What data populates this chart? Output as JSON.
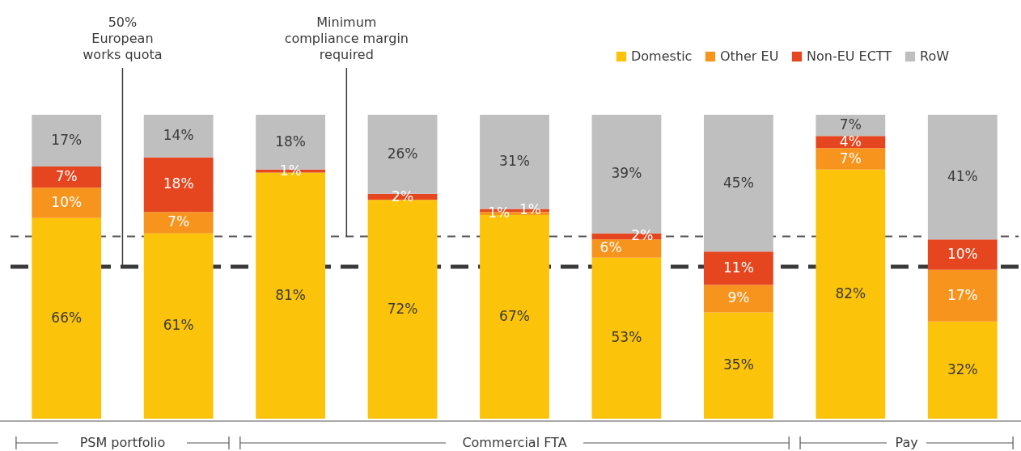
{
  "chart_data": {
    "type": "bar",
    "stacked": true,
    "categories": [
      null,
      null,
      null,
      null,
      null,
      null,
      null,
      null,
      null
    ],
    "series": [
      {
        "name": "Domestic",
        "color": "#fcc30b",
        "values": [
          66,
          61,
          81,
          72,
          67,
          53,
          35,
          82,
          32
        ],
        "value_labels": [
          "66%",
          "61%",
          "81%",
          "72%",
          "67%",
          "53%",
          "35%",
          "82%",
          "32%"
        ]
      },
      {
        "name": "Other EU",
        "color": "#f7941d",
        "values": [
          10,
          7,
          null,
          null,
          1,
          6,
          9,
          7,
          17
        ],
        "value_labels": [
          "10%",
          "7%",
          null,
          null,
          "1%",
          "6%",
          "9%",
          "7%",
          "17%"
        ]
      },
      {
        "name": "Non-EU ECTT",
        "color": "#e5461f",
        "values": [
          7,
          18,
          1,
          2,
          1,
          2,
          11,
          4,
          10
        ],
        "value_labels": [
          "7%",
          "18%",
          "1%",
          "2%",
          "1%",
          "2%",
          "11%",
          "4%",
          "10%"
        ]
      },
      {
        "name": "RoW",
        "color": "#bfbfbf",
        "values": [
          17,
          14,
          18,
          26,
          31,
          39,
          45,
          7,
          41
        ],
        "value_labels": [
          "17%",
          "14%",
          "18%",
          "26%",
          "31%",
          "39%",
          "45%",
          "7%",
          "41%"
        ]
      }
    ],
    "ref_lines": [
      {
        "axis": "y",
        "value": 50,
        "label": "50%\nEuropean\nworks quota",
        "color": "#3a3a3a",
        "line_style": "dashed"
      },
      {
        "axis": "y",
        "value": 60,
        "label": "Minimum\ncompliance margin\nrequired",
        "color": "#555555",
        "line_style": "dashed"
      }
    ],
    "annotations": [
      "PSM portfolio",
      "Commercial FTA",
      "Pay"
    ],
    "legend": "top right",
    "grid": false
  }
}
